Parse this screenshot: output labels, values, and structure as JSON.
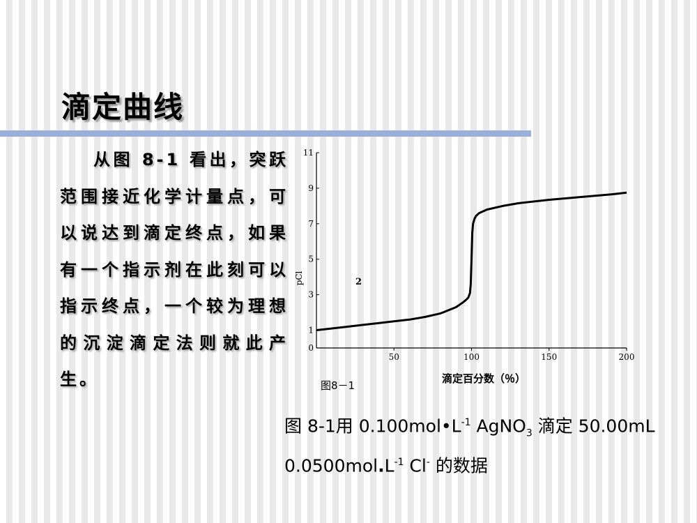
{
  "slide": {
    "title": "滴定曲线",
    "body": "从图 8-1 看出，突跃范围接近化学计量点，可以说达到滴定终点，如果有一个指示剂在此刻可以指示终点，一个较为理想的沉淀滴定法则就此产生。"
  },
  "caption": {
    "figure_no": "图 8-1",
    "text_1": "用 0.100mol",
    "dot_1": "•",
    "unit_1": "L",
    "exp_1": "-1",
    "reagent_1": " AgNO",
    "sub_1": "3",
    "text_2": " 滴定 50.00mL 0.0500mol",
    "dot_2": ".",
    "unit_2": "L",
    "exp_2": "-1",
    "ion": " Cl",
    "ion_charge": "-",
    "text_3": " 的数据"
  },
  "chart_data": {
    "type": "line",
    "xlabel": "滴定百分数（％）",
    "ylabel": "pCl",
    "figure_label": "图8－1",
    "curve_annotation": "2",
    "xlim": [
      0,
      200
    ],
    "ylim": [
      0,
      11
    ],
    "xticks": [
      50,
      100,
      150,
      200
    ],
    "yticks": [
      0,
      1,
      3,
      5,
      7,
      9,
      11
    ],
    "grid": false,
    "series": [
      {
        "x": [
          0,
          10,
          20,
          30,
          40,
          50,
          60,
          70,
          80,
          90,
          95,
          97,
          98,
          99,
          99.5,
          100,
          100.5,
          101,
          102,
          103,
          105,
          110,
          120,
          130,
          150,
          170,
          190,
          200
        ],
        "y": [
          1.0,
          1.1,
          1.2,
          1.3,
          1.4,
          1.5,
          1.6,
          1.75,
          1.95,
          2.3,
          2.6,
          2.75,
          2.85,
          3.1,
          3.6,
          5.0,
          6.5,
          7.0,
          7.3,
          7.45,
          7.6,
          7.8,
          8.0,
          8.15,
          8.35,
          8.5,
          8.65,
          8.75
        ]
      }
    ]
  }
}
